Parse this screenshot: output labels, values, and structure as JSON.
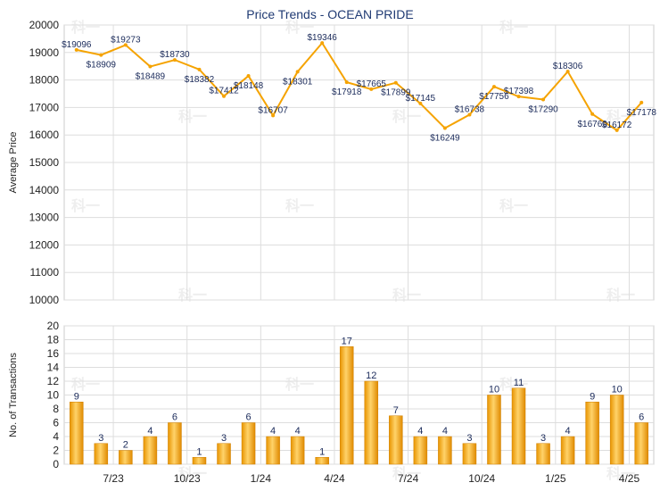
{
  "chart_data": [
    {
      "type": "line",
      "title": "Price Trends - OCEAN PRIDE",
      "ylabel": "Average Price",
      "ylim": [
        10000,
        20000
      ],
      "yticks": [
        10000,
        11000,
        12000,
        13000,
        14000,
        15000,
        16000,
        17000,
        18000,
        19000,
        20000
      ],
      "color": "#f5a300",
      "grid": true,
      "values": [
        19096,
        18909,
        19273,
        18489,
        18730,
        18382,
        17412,
        18148,
        16707,
        18301,
        19346,
        17918,
        17665,
        17899,
        17145,
        16249,
        16738,
        17756,
        17398,
        17290,
        18306,
        16760,
        16172,
        17178
      ],
      "labels": [
        "$19096",
        "$18909",
        "$19273",
        "$18489",
        "$18730",
        "$18382",
        "$17412",
        "$18148",
        "$16707",
        "$18301",
        "$19346",
        "$17918",
        "$17665",
        "$17899",
        "$17145",
        "$16249",
        "$16738",
        "$17756",
        "$17398",
        "$17290",
        "$18306",
        "$16760",
        "$16172",
        "$17178"
      ]
    },
    {
      "type": "bar",
      "ylabel": "No. of Transactions",
      "ylim": [
        0,
        20
      ],
      "yticks": [
        0,
        2,
        4,
        6,
        8,
        10,
        12,
        14,
        16,
        18,
        20
      ],
      "color": "#f5a300",
      "grid": true,
      "values": [
        9,
        3,
        2,
        4,
        6,
        1,
        3,
        6,
        4,
        4,
        1,
        17,
        12,
        7,
        4,
        4,
        3,
        10,
        11,
        3,
        4,
        9,
        10,
        6
      ],
      "xticks": [
        "7/23",
        "10/23",
        "1/24",
        "4/24",
        "7/24",
        "10/24",
        "1/25",
        "4/25"
      ]
    }
  ],
  "watermark": "科一"
}
